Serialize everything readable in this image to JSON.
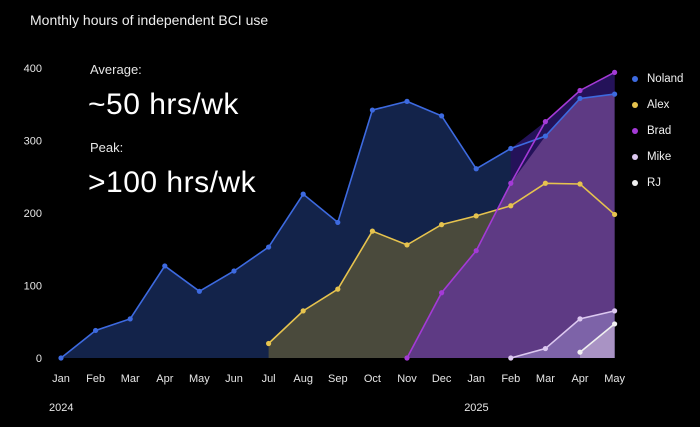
{
  "title": "Monthly hours of independent BCI use",
  "stats": {
    "average_label": "Average:",
    "average_value": "~50 hrs/wk",
    "peak_label": "Peak:",
    "peak_value": ">100 hrs/wk"
  },
  "colors": {
    "Noland": "#3d6ae0",
    "Alex": "#e6c34e",
    "Brad": "#a43ad6",
    "Mike": "#dcc8f0",
    "RJ": "#f0f0f0"
  },
  "chart_data": {
    "type": "area",
    "title": "Monthly hours of independent BCI use",
    "xlabel": "",
    "ylabel": "",
    "ylim": [
      0,
      400
    ],
    "yticks": [
      "0",
      "100",
      "200",
      "300",
      "400"
    ],
    "categories": [
      "Jan",
      "Feb",
      "Mar",
      "Apr",
      "May",
      "Jun",
      "Jul",
      "Aug",
      "Sep",
      "Oct",
      "Nov",
      "Dec",
      "Jan",
      "Feb",
      "Mar",
      "Apr",
      "May"
    ],
    "year_labels": [
      {
        "index": 0,
        "label": "2024"
      },
      {
        "index": 12,
        "label": "2025"
      }
    ],
    "grid": false,
    "legend": "right",
    "series": [
      {
        "name": "Noland",
        "values": [
          0,
          38,
          54,
          127,
          92,
          120,
          153,
          226,
          187,
          342,
          354,
          334,
          261,
          289,
          306,
          358,
          364
        ]
      },
      {
        "name": "Alex",
        "values": [
          null,
          null,
          null,
          null,
          null,
          null,
          20,
          65,
          95,
          175,
          156,
          184,
          196,
          210,
          241,
          240,
          198
        ]
      },
      {
        "name": "Brad",
        "values": [
          null,
          null,
          null,
          null,
          null,
          null,
          null,
          null,
          null,
          null,
          0,
          90,
          148,
          241,
          326,
          369,
          394
        ]
      },
      {
        "name": "Mike",
        "values": [
          null,
          null,
          null,
          null,
          null,
          null,
          null,
          null,
          null,
          null,
          null,
          null,
          null,
          0,
          13,
          54,
          65
        ]
      },
      {
        "name": "RJ",
        "values": [
          null,
          null,
          null,
          null,
          null,
          null,
          null,
          null,
          null,
          null,
          null,
          null,
          null,
          null,
          null,
          8,
          47
        ]
      }
    ]
  }
}
